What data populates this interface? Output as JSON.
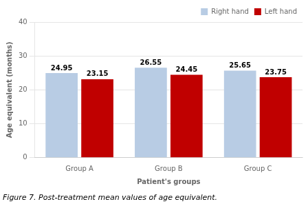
{
  "chart_data": {
    "type": "bar",
    "caption": "Figure 7. Post-treatment mean values of age equivalent.",
    "xlabel": "Patient's groups",
    "ylabel": "Age equivalent (months)",
    "categories": [
      "Group A",
      "Group B",
      "Group C"
    ],
    "series": [
      {
        "name": "Right hand",
        "color": "#b8cce4",
        "values": [
          24.95,
          26.55,
          25.65
        ]
      },
      {
        "name": "Left hand",
        "color": "#c00000",
        "values": [
          23.15,
          24.45,
          23.75
        ]
      }
    ],
    "ylim": [
      0,
      40
    ],
    "yticks": [
      0,
      10,
      20,
      30,
      40
    ],
    "grid": true,
    "legend": "upper right",
    "data_labels": true
  }
}
